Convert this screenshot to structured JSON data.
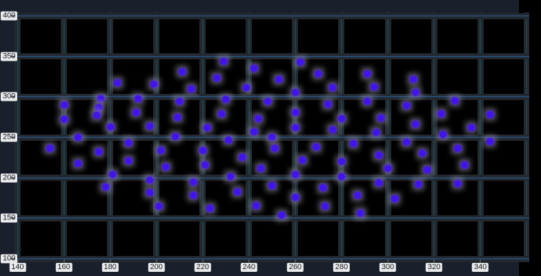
{
  "chart_data": {
    "type": "scatter",
    "title": "",
    "xlabel": "",
    "ylabel": "",
    "xlim": [
      140,
      360
    ],
    "ylim": [
      100,
      400
    ],
    "grid": "on",
    "legend": "none",
    "x_tick_labels": [
      140,
      160,
      180,
      200,
      220,
      240,
      260,
      280,
      300,
      320,
      340
    ],
    "y_tick_labels": [
      400,
      350,
      300,
      250,
      200,
      150,
      100
    ],
    "x_gridlines": [
      140,
      160,
      180,
      200,
      220,
      240,
      260,
      280,
      300,
      320,
      340,
      360
    ],
    "y_gridlines": [
      400,
      350,
      300,
      250,
      200,
      150,
      100
    ],
    "series": [
      {
        "name": "points",
        "points": [
          [
            183,
            317
          ],
          [
            199,
            316
          ],
          [
            211,
            331
          ],
          [
            176,
            298
          ],
          [
            192,
            298
          ],
          [
            210,
            294
          ],
          [
            160,
            290
          ],
          [
            175,
            287
          ],
          [
            174,
            277
          ],
          [
            191,
            281
          ],
          [
            160,
            272
          ],
          [
            180,
            263
          ],
          [
            197,
            264
          ],
          [
            209,
            275
          ],
          [
            229,
            344
          ],
          [
            226,
            323
          ],
          [
            215,
            310
          ],
          [
            242,
            335
          ],
          [
            239,
            311
          ],
          [
            253,
            322
          ],
          [
            262,
            343
          ],
          [
            270,
            328
          ],
          [
            260,
            305
          ],
          [
            276,
            311
          ],
          [
            230,
            297
          ],
          [
            248,
            294
          ],
          [
            274,
            291
          ],
          [
            228,
            279
          ],
          [
            260,
            281
          ],
          [
            280,
            273
          ],
          [
            244,
            273
          ],
          [
            222,
            262
          ],
          [
            260,
            262
          ],
          [
            276,
            259
          ],
          [
            291,
            328
          ],
          [
            294,
            312
          ],
          [
            311,
            322
          ],
          [
            312,
            305
          ],
          [
            291,
            294
          ],
          [
            308,
            289
          ],
          [
            329,
            295
          ],
          [
            323,
            279
          ],
          [
            297,
            274
          ],
          [
            312,
            266
          ],
          [
            336,
            262
          ],
          [
            344,
            278
          ],
          [
            154,
            236
          ],
          [
            166,
            250
          ],
          [
            166,
            218
          ],
          [
            175,
            232
          ],
          [
            181,
            204
          ],
          [
            178,
            189
          ],
          [
            188,
            243
          ],
          [
            188,
            221
          ],
          [
            197,
            197
          ],
          [
            197,
            182
          ],
          [
            201,
            165
          ],
          [
            202,
            234
          ],
          [
            204,
            213
          ],
          [
            208,
            251
          ],
          [
            231,
            247
          ],
          [
            220,
            234
          ],
          [
            221,
            216
          ],
          [
            237,
            225
          ],
          [
            242,
            257
          ],
          [
            250,
            250
          ],
          [
            251,
            236
          ],
          [
            245,
            212
          ],
          [
            232,
            201
          ],
          [
            216,
            195
          ],
          [
            216,
            178
          ],
          [
            235,
            183
          ],
          [
            223,
            162
          ],
          [
            243,
            166
          ],
          [
            250,
            190
          ],
          [
            254,
            154
          ],
          [
            260,
            204
          ],
          [
            260,
            176
          ],
          [
            263,
            222
          ],
          [
            269,
            238
          ],
          [
            272,
            188
          ],
          [
            273,
            165
          ],
          [
            280,
            220
          ],
          [
            280,
            201
          ],
          [
            285,
            242
          ],
          [
            295,
            256
          ],
          [
            296,
            228
          ],
          [
            300,
            212
          ],
          [
            296,
            194
          ],
          [
            287,
            178
          ],
          [
            288,
            156
          ],
          [
            303,
            174
          ],
          [
            308,
            244
          ],
          [
            313,
            192
          ],
          [
            315,
            230
          ],
          [
            317,
            210
          ],
          [
            324,
            253
          ],
          [
            330,
            236
          ],
          [
            333,
            216
          ],
          [
            330,
            193
          ],
          [
            344,
            245
          ]
        ]
      }
    ],
    "colors": {
      "plot_background": "#000000",
      "margin_background": "#1a202b",
      "grid_bar": "#23282f",
      "grid_core_horizontal": "#26486b",
      "grid_core_vertical": "#1d4247",
      "point": "#4114ec",
      "point_glow": "rgba(165,165,175,0.5)",
      "label_background": "#e8eaec",
      "label_text": "#17191c",
      "tick_dash": "#4a515a"
    }
  }
}
